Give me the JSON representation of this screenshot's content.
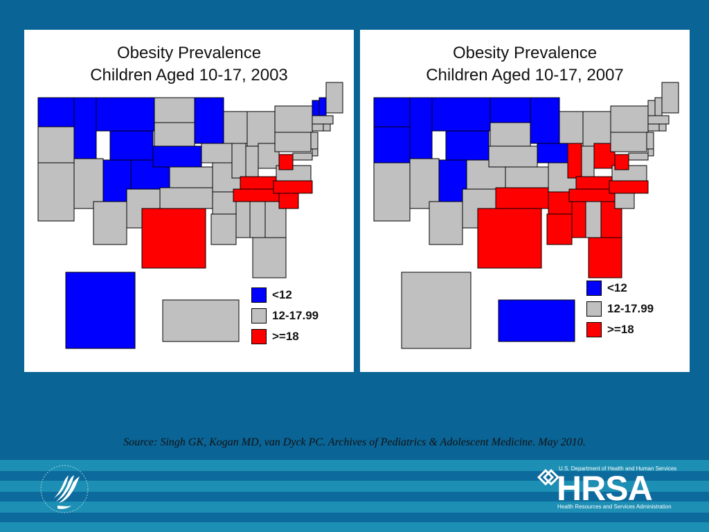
{
  "colors": {
    "background": "#0a6496",
    "panel": "#ffffff",
    "low": "#0000ff",
    "mid": "#c0c0c0",
    "high": "#ff0000",
    "border": "#000000"
  },
  "maps": [
    {
      "title_line1": "Obesity Prevalence",
      "title_line2": "Children Aged 10-17, 2003",
      "legend": [
        {
          "label": "<12",
          "color": "#0000ff"
        },
        {
          "label": "12-17.99",
          "color": "#c0c0c0"
        },
        {
          "label": ">=18",
          "color": "#ff0000"
        }
      ],
      "states_low": [
        "WA",
        "ID",
        "MT",
        "WY",
        "UT",
        "CO",
        "NE",
        "MN",
        "AK",
        "VT",
        "NH"
      ],
      "states_high": [
        "TX",
        "KY",
        "WV",
        "TN",
        "NC",
        "SC"
      ]
    },
    {
      "title_line1": "Obesity Prevalence",
      "title_line2": "Children Aged 10-17, 2007",
      "legend": [
        {
          "label": "<12",
          "color": "#0000ff"
        },
        {
          "label": "12-17.99",
          "color": "#c0c0c0"
        },
        {
          "label": ">=18",
          "color": "#ff0000"
        }
      ],
      "states_low": [
        "WA",
        "OR",
        "ID",
        "MT",
        "WY",
        "ND",
        "MN",
        "UT",
        "IA",
        "HI"
      ],
      "states_high": [
        "TX",
        "OK",
        "AR",
        "LA",
        "MS",
        "TN",
        "KY",
        "IL",
        "OH",
        "WV",
        "NC",
        "GA",
        "FL"
      ]
    }
  ],
  "source": "Source: Singh GK, Kogan MD, van Dyck PC. Archives of Pediatrics & Adolescent Medicine. May 2010.",
  "footer": {
    "hrsa_top": "U.S. Department of Health and Human Services",
    "hrsa_word": "HRSA",
    "hrsa_bottom": "Health Resources and Services Administration"
  }
}
